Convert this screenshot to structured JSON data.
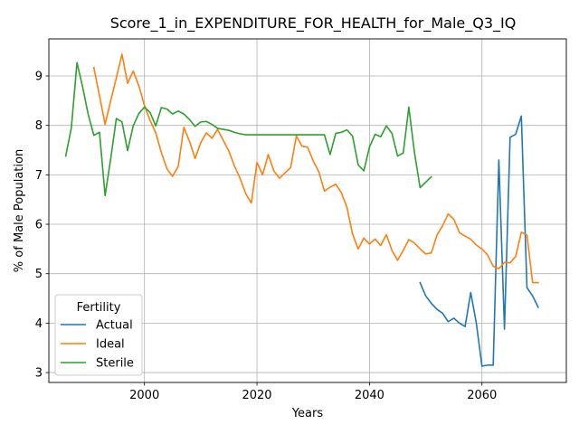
{
  "chart_data": {
    "type": "line",
    "title": "Score_1_in_EXPENDITURE_FOR_HEALTH_for_Male_Q3_IQ",
    "xlabel": "Years",
    "ylabel": "% of Male Population",
    "xlim": [
      1983,
      2075
    ],
    "ylim": [
      2.8,
      9.75
    ],
    "xticks": [
      2000,
      2020,
      2040,
      2060
    ],
    "yticks": [
      3,
      4,
      5,
      6,
      7,
      8,
      9
    ],
    "grid": true,
    "legend": {
      "title": "Fertility",
      "placement": "lower-left"
    },
    "series": [
      {
        "name": "Actual",
        "color": "#1f77b4",
        "x": [
          2049,
          2050,
          2051,
          2052,
          2053,
          2054,
          2055,
          2056,
          2057,
          2058,
          2059,
          2060,
          2061,
          2062,
          2063,
          2064,
          2065,
          2066,
          2067,
          2068,
          2069,
          2070
        ],
        "y": [
          4.82,
          4.55,
          4.4,
          4.28,
          4.2,
          4.03,
          4.1,
          4.0,
          3.93,
          4.62,
          4.0,
          3.13,
          3.15,
          3.15,
          7.3,
          3.88,
          7.76,
          7.82,
          8.19,
          4.72,
          4.55,
          4.32
        ]
      },
      {
        "name": "Ideal",
        "color": "#ff7f0e",
        "x": [
          1991,
          1992,
          1993,
          1994,
          1995,
          1996,
          1997,
          1998,
          1999,
          2000,
          2001,
          2002,
          2003,
          2004,
          2005,
          2006,
          2007,
          2008,
          2009,
          2010,
          2011,
          2012,
          2013,
          2014,
          2015,
          2016,
          2017,
          2018,
          2019,
          2020,
          2021,
          2022,
          2023,
          2024,
          2025,
          2026,
          2027,
          2028,
          2029,
          2030,
          2031,
          2032,
          2033,
          2034,
          2035,
          2036,
          2037,
          2038,
          2039,
          2040,
          2041,
          2042,
          2043,
          2044,
          2045,
          2046,
          2047,
          2048,
          2049,
          2050,
          2051,
          2052,
          2053,
          2054,
          2055,
          2056,
          2057,
          2058,
          2059,
          2060,
          2061,
          2062,
          2063,
          2064,
          2065,
          2066,
          2067,
          2068,
          2069,
          2070
        ],
        "y": [
          9.17,
          8.6,
          8.02,
          8.5,
          8.96,
          9.44,
          8.85,
          9.1,
          8.8,
          8.4,
          8.1,
          7.85,
          7.45,
          7.12,
          6.97,
          7.17,
          7.96,
          7.68,
          7.33,
          7.65,
          7.85,
          7.74,
          7.92,
          7.7,
          7.48,
          7.18,
          6.93,
          6.62,
          6.43,
          7.25,
          7.0,
          7.41,
          7.08,
          6.93,
          7.04,
          7.15,
          7.79,
          7.58,
          7.56,
          7.28,
          7.06,
          6.67,
          6.75,
          6.81,
          6.64,
          6.34,
          5.8,
          5.5,
          5.72,
          5.6,
          5.7,
          5.57,
          5.79,
          5.47,
          5.27,
          5.47,
          5.69,
          5.62,
          5.5,
          5.4,
          5.42,
          5.78,
          5.97,
          6.21,
          6.1,
          5.83,
          5.76,
          5.7,
          5.58,
          5.5,
          5.38,
          5.15,
          5.1,
          5.23,
          5.22,
          5.35,
          5.84,
          5.78,
          4.82,
          4.82
        ]
      },
      {
        "name": "Sterile",
        "color": "#2ca02c",
        "x": [
          1986,
          1987,
          1988,
          1989,
          1990,
          1991,
          1992,
          1993,
          1994,
          1995,
          1996,
          1997,
          1998,
          1999,
          2000,
          2001,
          2002,
          2003,
          2004,
          2005,
          2006,
          2007,
          2008,
          2009,
          2010,
          2011,
          2012,
          2013,
          2014,
          2015,
          2016,
          2017,
          2018,
          2019,
          2020,
          2021,
          2022,
          2023,
          2024,
          2025,
          2026,
          2027,
          2028,
          2029,
          2030,
          2031,
          2032,
          2033,
          2034,
          2035,
          2036,
          2037,
          2038,
          2039,
          2040,
          2041,
          2042,
          2043,
          2044,
          2045,
          2046,
          2047,
          2048,
          2049,
          2050,
          2051
        ],
        "y": [
          7.38,
          7.95,
          9.27,
          8.78,
          8.22,
          7.8,
          7.86,
          6.58,
          7.33,
          8.14,
          8.07,
          7.49,
          7.99,
          8.24,
          8.37,
          8.26,
          7.99,
          8.36,
          8.33,
          8.23,
          8.29,
          8.23,
          8.12,
          7.98,
          8.07,
          8.08,
          8.02,
          7.94,
          7.92,
          7.9,
          7.86,
          7.83,
          7.81,
          7.81,
          7.81,
          7.81,
          7.81,
          7.81,
          7.81,
          7.81,
          7.81,
          7.81,
          7.81,
          7.81,
          7.81,
          7.81,
          7.81,
          7.41,
          7.84,
          7.86,
          7.91,
          7.78,
          7.2,
          7.08,
          7.56,
          7.82,
          7.77,
          7.99,
          7.84,
          7.38,
          7.44,
          8.37,
          7.45,
          6.74,
          6.85,
          6.96
        ]
      }
    ]
  }
}
